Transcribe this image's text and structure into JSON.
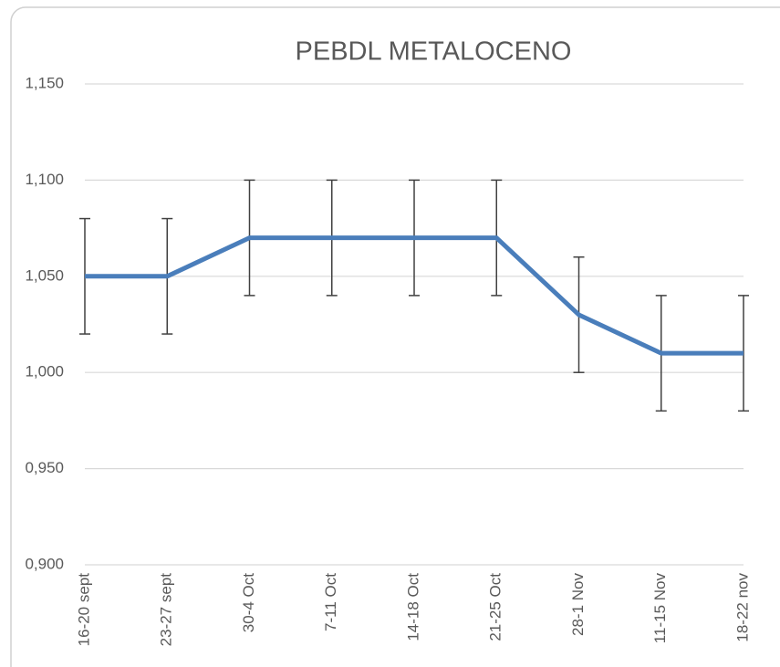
{
  "chart_data": {
    "type": "line",
    "title": "PEBDL METALOCENO",
    "categories": [
      "16-20 sept",
      "23-27 sept",
      "30-4 Oct",
      "7-11 Oct",
      "14-18 Oct",
      "21-25 Oct",
      "28-1 Nov",
      "11-15 Nov",
      "18-22 nov"
    ],
    "series": [
      {
        "name": "PEBDL METALOCENO",
        "color": "#4a7ebb",
        "values": [
          1.05,
          1.05,
          1.07,
          1.07,
          1.07,
          1.07,
          1.03,
          1.01,
          1.01
        ],
        "errors": [
          0.03,
          0.03,
          0.03,
          0.03,
          0.03,
          0.03,
          0.03,
          0.03,
          0.03
        ]
      }
    ],
    "ylim": [
      0.9,
      1.15
    ],
    "yticks": [
      {
        "value": 0.9,
        "label": "0,900"
      },
      {
        "value": 0.95,
        "label": "0,950"
      },
      {
        "value": 1.0,
        "label": "1,000"
      },
      {
        "value": 1.05,
        "label": "1,050"
      },
      {
        "value": 1.1,
        "label": "1,100"
      },
      {
        "value": 1.15,
        "label": "1,150"
      }
    ],
    "grid": true
  }
}
